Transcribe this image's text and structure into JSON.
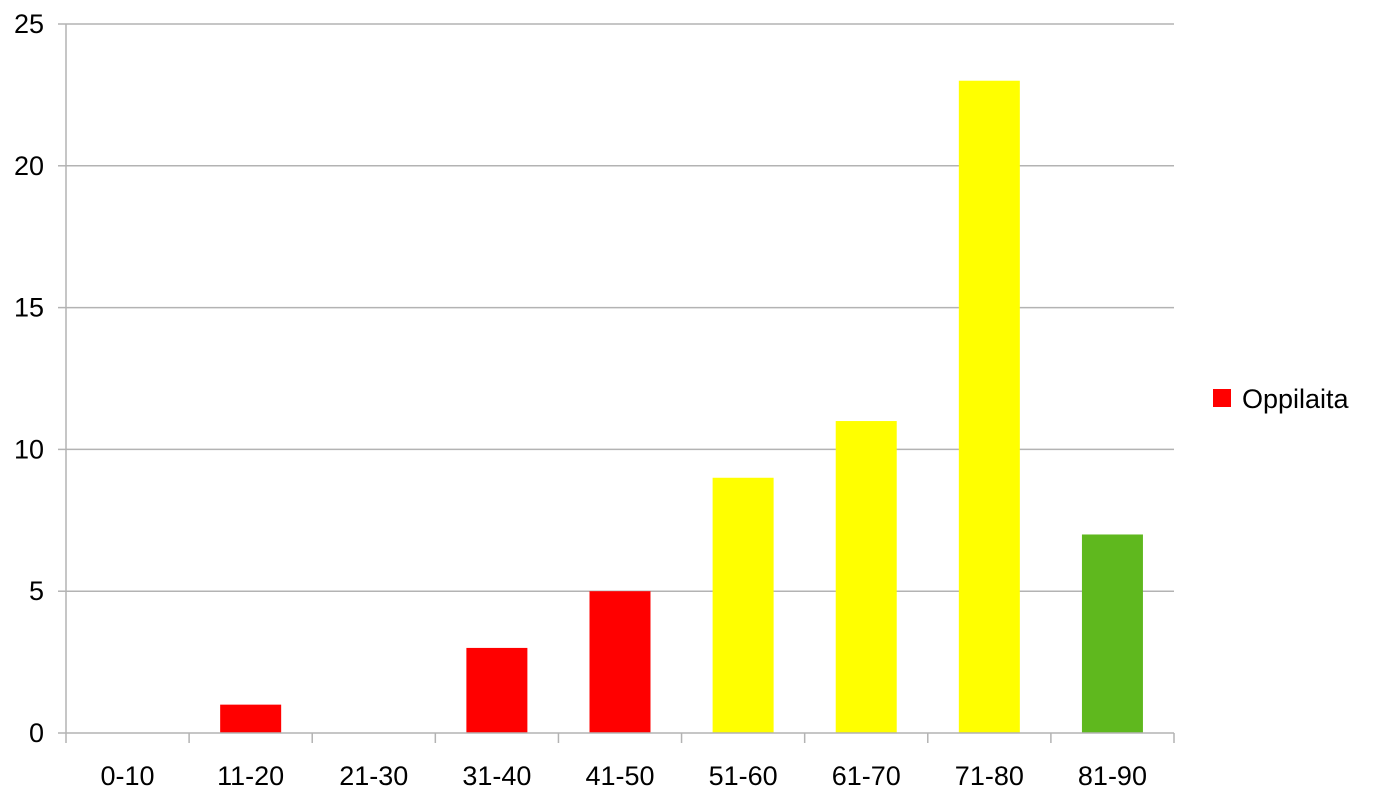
{
  "chart_data": {
    "type": "bar",
    "categories": [
      "0-10",
      "11-20",
      "21-30",
      "31-40",
      "41-50",
      "51-60",
      "61-70",
      "71-80",
      "81-90"
    ],
    "series": [
      {
        "name": "Oppilaita",
        "values": [
          0,
          1,
          0,
          3,
          5,
          9,
          11,
          23,
          7
        ],
        "colors": [
          "#ff0000",
          "#ff0000",
          "#ff0000",
          "#ff0000",
          "#ff0000",
          "#ffff00",
          "#ffff00",
          "#ffff00",
          "#5fb81e"
        ]
      }
    ],
    "ylim": [
      0,
      25
    ],
    "yticks": [
      "0",
      "5",
      "10",
      "15",
      "20",
      "25"
    ],
    "grid": true,
    "legend_position": "right",
    "legend_color": "#ff0000",
    "gridline_color": "#b3b3b3",
    "axis_color": "#b3b3b3"
  }
}
